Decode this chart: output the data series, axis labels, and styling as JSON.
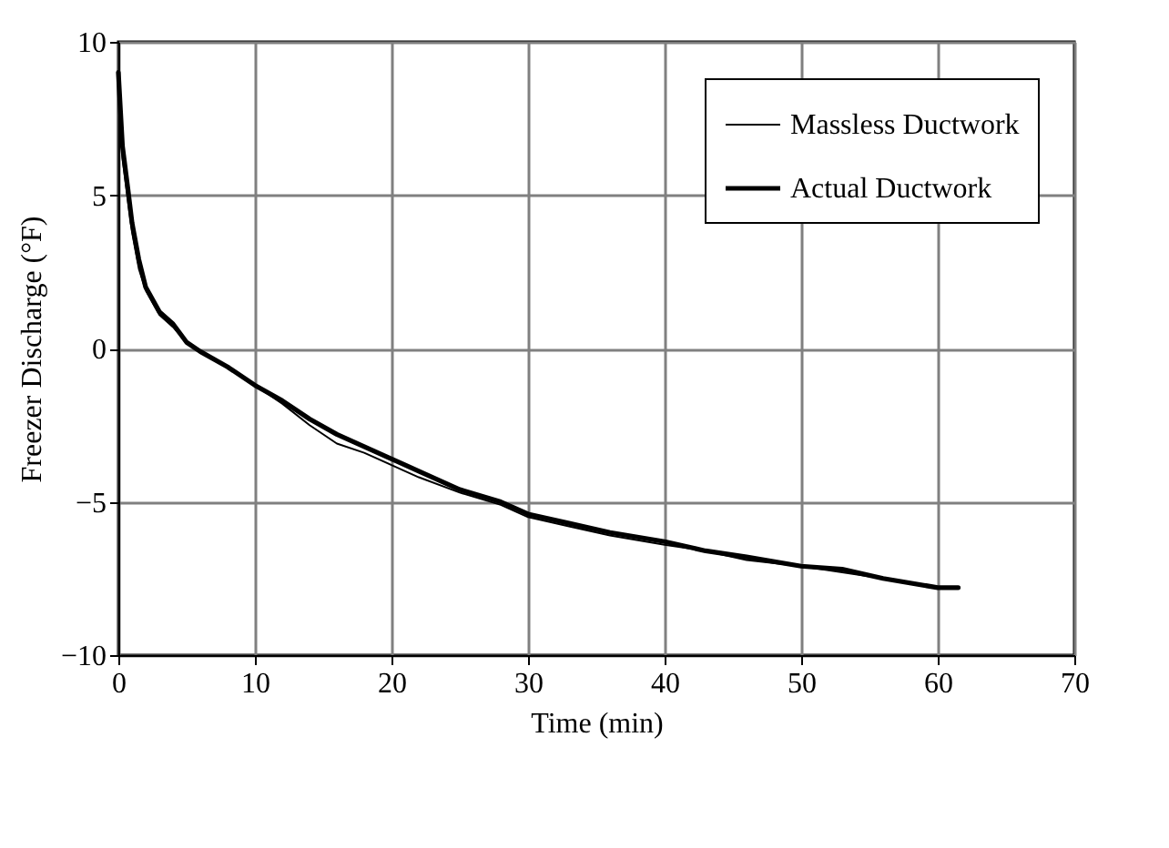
{
  "chart_data": {
    "type": "line",
    "xlabel": "Time (min)",
    "ylabel": "Freezer Discharge (°F)",
    "x": [
      0,
      0.3,
      0.7,
      1,
      1.5,
      2,
      3,
      4,
      5,
      6,
      8,
      10,
      12,
      14,
      16,
      18,
      20,
      22,
      25,
      28,
      30,
      33,
      36,
      40,
      43,
      46,
      50,
      53,
      56,
      60,
      61.5
    ],
    "series": [
      {
        "name": "Massless Ductwork",
        "color": "#000000",
        "values": [
          8.5,
          6.2,
          4.8,
          3.8,
          2.6,
          1.9,
          1.1,
          0.7,
          0.2,
          -0.1,
          -0.6,
          -1.2,
          -1.8,
          -2.5,
          -3.1,
          -3.4,
          -3.8,
          -4.2,
          -4.7,
          -5.1,
          -5.5,
          -5.8,
          -6.1,
          -6.4,
          -6.6,
          -6.9,
          -7.1,
          -7.3,
          -7.5,
          -7.8,
          -7.8
        ]
      },
      {
        "name": "Actual Ductwork",
        "color": "#000000",
        "values": [
          9,
          6.6,
          5.2,
          4.1,
          2.9,
          2,
          1.2,
          0.8,
          0.2,
          -0.1,
          -0.6,
          -1.2,
          -1.7,
          -2.3,
          -2.8,
          -3.2,
          -3.6,
          -4.0,
          -4.6,
          -5.0,
          -5.4,
          -5.7,
          -6.0,
          -6.3,
          -6.6,
          -6.8,
          -7.1,
          -7.2,
          -7.5,
          -7.8,
          -7.8
        ]
      }
    ],
    "xlim": [
      0,
      70
    ],
    "xticks": [
      0,
      10,
      20,
      30,
      40,
      50,
      60,
      70
    ],
    "ylim": [
      -10,
      10
    ],
    "yticks": [
      -10,
      -5,
      0,
      5,
      10
    ],
    "grid": true,
    "legend": "top right",
    "line_style": "solid",
    "marker": "none"
  }
}
